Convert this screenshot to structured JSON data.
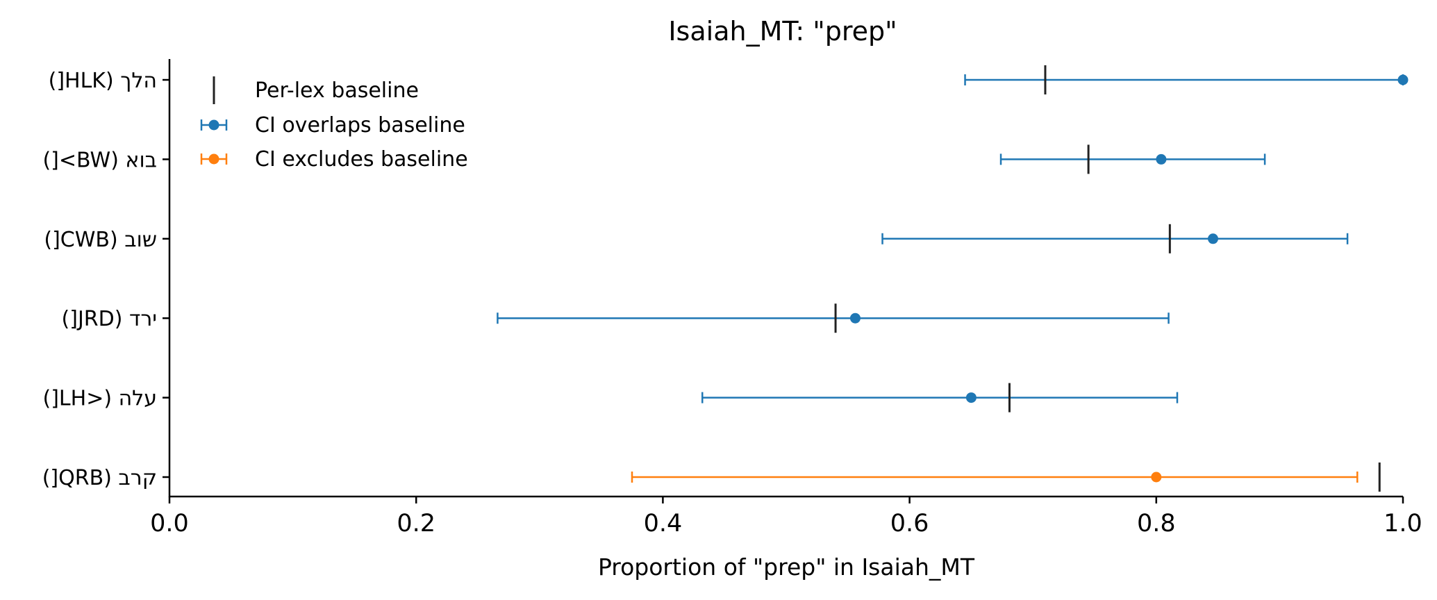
{
  "chart_data": {
    "type": "errorbar",
    "title": "Isaiah_MT: \"prep\"",
    "xlabel": "Proportion of \"prep\" in Isaiah_MT",
    "ylabel": "",
    "xlim": [
      0.0,
      1.0
    ],
    "xticks": [
      "0.0",
      "0.2",
      "0.4",
      "0.6",
      "0.8",
      "1.0"
    ],
    "categories": [
      "הלך (HLK[)",
      "בוא (BW>[)",
      "שוב (CWB[)",
      "ירד (JRD[)",
      "עלה (<LH[)",
      "קרב (QRB[)"
    ],
    "series": [
      {
        "name": "CI overlaps baseline",
        "color": "#1f77b4",
        "points": [
          {
            "category": "הלך (HLK[)",
            "estimate": 1.0,
            "ci_low": 0.645,
            "ci_high": 1.0,
            "baseline": 0.71
          },
          {
            "category": "בוא (BW>[)",
            "estimate": 0.804,
            "ci_low": 0.674,
            "ci_high": 0.888,
            "baseline": 0.745
          },
          {
            "category": "שוב (CWB[)",
            "estimate": 0.846,
            "ci_low": 0.578,
            "ci_high": 0.955,
            "baseline": 0.811
          },
          {
            "category": "ירד (JRD[)",
            "estimate": 0.556,
            "ci_low": 0.266,
            "ci_high": 0.81,
            "baseline": 0.54
          },
          {
            "category": "עלה (<LH[)",
            "estimate": 0.65,
            "ci_low": 0.432,
            "ci_high": 0.817,
            "baseline": 0.681
          }
        ]
      },
      {
        "name": "CI excludes baseline",
        "color": "#ff7f0e",
        "points": [
          {
            "category": "קרב (QRB[)",
            "estimate": 0.8,
            "ci_low": 0.375,
            "ci_high": 0.963,
            "baseline": 0.981
          }
        ]
      }
    ],
    "baseline_name": "Per-lex baseline",
    "baseline_color": "#222222",
    "legend": {
      "position": "top-left",
      "entries": [
        "Per-lex baseline",
        "CI overlaps baseline",
        "CI excludes baseline"
      ]
    },
    "grid": false
  }
}
